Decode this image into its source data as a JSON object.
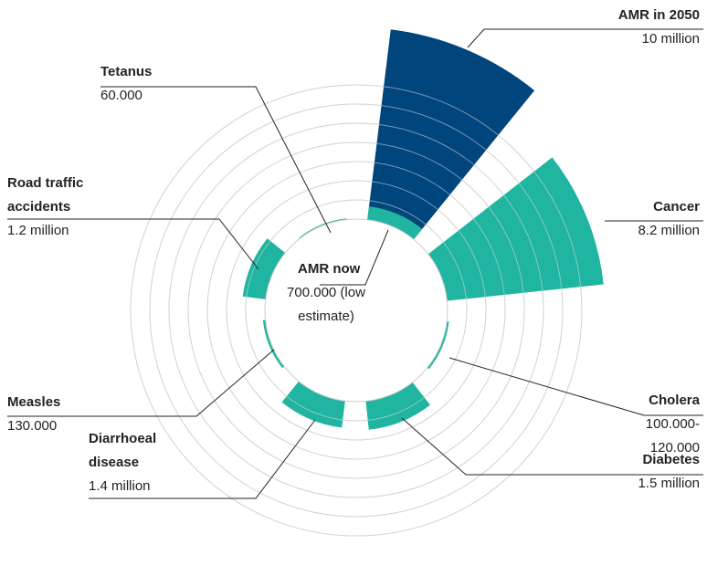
{
  "chart_data": {
    "type": "polar-bar",
    "categories": [
      "AMR now",
      "AMR in 2050",
      "Cancer",
      "Cholera",
      "Diabetes",
      "Diarrhoeal disease",
      "Measles",
      "Road traffic accidents",
      "Tetanus"
    ],
    "values": [
      700000,
      10000000,
      8200000,
      110000,
      1500000,
      1400000,
      130000,
      1200000,
      60000
    ],
    "value_labels": [
      "700.000 (low estimate)",
      "10 million",
      "8.2 million",
      "100.000-120.000",
      "1.5 million",
      "1.4 million",
      "130.000",
      "1.2 million",
      "60.000"
    ],
    "colors": [
      "#1fb5a0",
      "#00457c",
      "#1fb5a0",
      "#1fb5a0",
      "#1fb5a0",
      "#1fb5a0",
      "#1fb5a0",
      "#1fb5a0",
      "#1fb5a0"
    ],
    "rlim": [
      0,
      10000000
    ],
    "rticks": [
      1000000,
      2000000,
      3000000,
      4000000,
      5000000,
      6000000,
      7000000
    ],
    "grid": true
  }
}
